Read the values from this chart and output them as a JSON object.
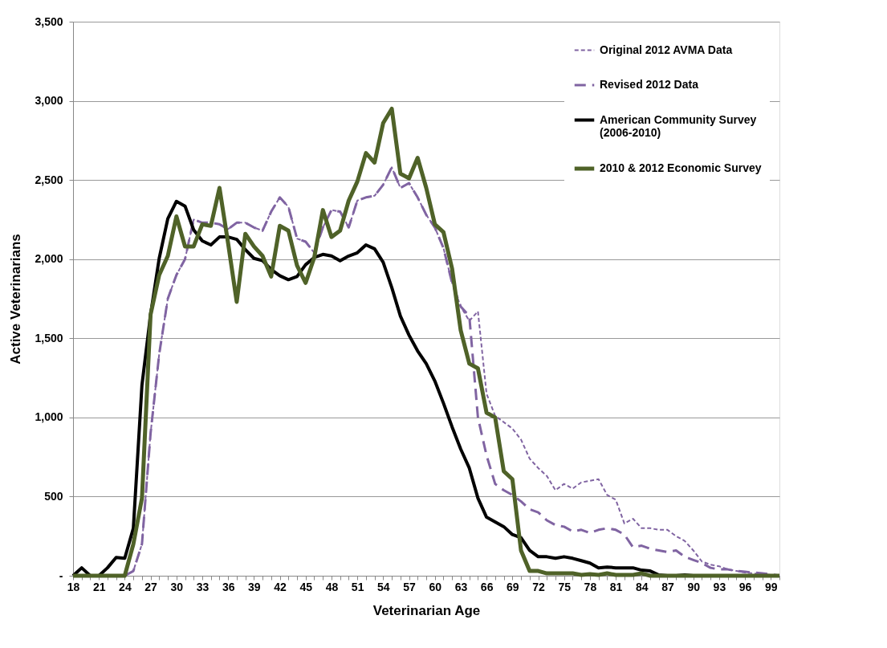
{
  "chart_data": {
    "type": "line",
    "xlabel": "Veterinarian Age",
    "ylabel": "Active Veterinarians",
    "x": [
      18,
      19,
      20,
      21,
      22,
      23,
      24,
      25,
      26,
      27,
      28,
      29,
      30,
      31,
      32,
      33,
      34,
      35,
      36,
      37,
      38,
      39,
      40,
      41,
      42,
      43,
      44,
      45,
      46,
      47,
      48,
      49,
      50,
      51,
      52,
      53,
      54,
      55,
      56,
      57,
      58,
      59,
      60,
      61,
      62,
      63,
      64,
      65,
      66,
      67,
      68,
      69,
      70,
      71,
      72,
      73,
      74,
      75,
      76,
      77,
      78,
      79,
      80,
      81,
      82,
      83,
      84,
      85,
      86,
      87,
      88,
      89,
      90,
      91,
      92,
      93,
      94,
      95,
      96,
      97,
      98,
      99,
      100
    ],
    "xlim": [
      18,
      100
    ],
    "xticks": [
      18,
      {
        "value": 19,
        "label": null
      },
      {
        "value": 20,
        "label": null
      },
      21,
      {
        "value": 22,
        "label": null
      },
      {
        "value": 23,
        "label": null
      },
      24,
      {
        "value": 25,
        "label": null
      },
      {
        "value": 26,
        "label": null
      },
      27,
      {
        "value": 28,
        "label": null
      },
      {
        "value": 29,
        "label": null
      },
      30,
      {
        "value": 31,
        "label": null
      },
      {
        "value": 32,
        "label": null
      },
      33,
      {
        "value": 34,
        "label": null
      },
      {
        "value": 35,
        "label": null
      },
      36,
      {
        "value": 37,
        "label": null
      },
      {
        "value": 38,
        "label": null
      },
      39,
      {
        "value": 40,
        "label": null
      },
      {
        "value": 41,
        "label": null
      },
      42,
      {
        "value": 43,
        "label": null
      },
      {
        "value": 44,
        "label": null
      },
      45,
      {
        "value": 46,
        "label": null
      },
      {
        "value": 47,
        "label": null
      },
      48,
      {
        "value": 49,
        "label": null
      },
      {
        "value": 50,
        "label": null
      },
      51,
      {
        "value": 52,
        "label": null
      },
      {
        "value": 53,
        "label": null
      },
      54,
      {
        "value": 55,
        "label": null
      },
      {
        "value": 56,
        "label": null
      },
      57,
      {
        "value": 58,
        "label": null
      },
      {
        "value": 59,
        "label": null
      },
      60,
      {
        "value": 61,
        "label": null
      },
      {
        "value": 62,
        "label": null
      },
      63,
      {
        "value": 64,
        "label": null
      },
      {
        "value": 65,
        "label": null
      },
      66,
      {
        "value": 67,
        "label": null
      },
      {
        "value": 68,
        "label": null
      },
      69,
      {
        "value": 70,
        "label": null
      },
      {
        "value": 71,
        "label": null
      },
      72,
      {
        "value": 73,
        "label": null
      },
      {
        "value": 74,
        "label": null
      },
      75,
      {
        "value": 76,
        "label": null
      },
      {
        "value": 77,
        "label": null
      },
      78,
      {
        "value": 79,
        "label": null
      },
      {
        "value": 80,
        "label": null
      },
      81,
      {
        "value": 82,
        "label": null
      },
      {
        "value": 83,
        "label": null
      },
      84,
      {
        "value": 85,
        "label": null
      },
      {
        "value": 86,
        "label": null
      },
      87,
      {
        "value": 88,
        "label": null
      },
      {
        "value": 89,
        "label": null
      },
      90,
      {
        "value": 91,
        "label": null
      },
      {
        "value": 92,
        "label": null
      },
      93,
      {
        "value": 94,
        "label": null
      },
      {
        "value": 95,
        "label": null
      },
      96,
      {
        "value": 97,
        "label": null
      },
      {
        "value": 98,
        "label": null
      },
      99,
      {
        "value": 100,
        "label": null
      }
    ],
    "ylim": [
      0,
      3500
    ],
    "yticks": [
      {
        "value": 0,
        "label": "-"
      },
      500,
      {
        "value": 1000,
        "label": "1,000"
      },
      {
        "value": 1500,
        "label": "1,500"
      },
      {
        "value": 2000,
        "label": "2,000"
      },
      {
        "value": 2500,
        "label": "2,500"
      },
      {
        "value": 3000,
        "label": "3,000"
      },
      {
        "value": 3500,
        "label": "3,500"
      }
    ],
    "grid": "y",
    "legend": "top right",
    "series": [
      {
        "name": "Original 2012 AVMA Data",
        "color": "#8064a2",
        "line_style": "dashed",
        "values": [
          0,
          0,
          0,
          0,
          0,
          0,
          0,
          30,
          200,
          900,
          1400,
          1750,
          1900,
          2000,
          2250,
          2230,
          2230,
          2220,
          2190,
          2230,
          2230,
          2200,
          2180,
          2300,
          2390,
          2330,
          2130,
          2110,
          2040,
          2200,
          2310,
          2300,
          2200,
          2370,
          2390,
          2400,
          2470,
          2580,
          2450,
          2480,
          2390,
          2280,
          2200,
          2070,
          1850,
          1700,
          1610,
          1670,
          1150,
          1010,
          970,
          930,
          860,
          740,
          680,
          630,
          540,
          580,
          550,
          590,
          600,
          610,
          510,
          480,
          330,
          360,
          300,
          300,
          290,
          290,
          250,
          220,
          160,
          90,
          70,
          60,
          40,
          30,
          20,
          15,
          10,
          5,
          0
        ]
      },
      {
        "name": "Revised 2012 Data",
        "color": "#8064a2",
        "line_style": "dashed",
        "values": [
          0,
          0,
          0,
          0,
          0,
          0,
          0,
          30,
          200,
          900,
          1400,
          1750,
          1900,
          2000,
          2250,
          2230,
          2230,
          2220,
          2190,
          2230,
          2230,
          2200,
          2180,
          2300,
          2390,
          2330,
          2130,
          2110,
          2040,
          2200,
          2310,
          2300,
          2200,
          2370,
          2390,
          2400,
          2470,
          2580,
          2450,
          2480,
          2390,
          2280,
          2200,
          2070,
          1850,
          1700,
          1640,
          1000,
          760,
          580,
          540,
          510,
          470,
          420,
          400,
          350,
          320,
          310,
          280,
          290,
          270,
          290,
          300,
          290,
          260,
          180,
          190,
          170,
          160,
          150,
          160,
          120,
          100,
          80,
          50,
          40,
          40,
          30,
          25,
          20,
          15,
          10,
          0
        ]
      },
      {
        "name": "American Community Survey (2006-2010)",
        "color": "#000000",
        "line_style": "solid",
        "values": [
          0,
          50,
          0,
          0,
          50,
          115,
          110,
          300,
          1205,
          1650,
          2005,
          2255,
          2365,
          2335,
          2185,
          2115,
          2090,
          2140,
          2140,
          2125,
          2060,
          2005,
          1990,
          1935,
          1895,
          1870,
          1890,
          1965,
          2010,
          2030,
          2020,
          1990,
          2020,
          2040,
          2090,
          2065,
          1980,
          1820,
          1640,
          1520,
          1420,
          1340,
          1230,
          1090,
          940,
          800,
          680,
          490,
          370,
          340,
          310,
          260,
          240,
          160,
          120,
          120,
          110,
          120,
          110,
          95,
          80,
          50,
          55,
          50,
          50,
          50,
          35,
          30,
          5,
          0,
          0,
          5,
          0,
          0,
          0,
          0,
          0,
          0,
          0,
          0,
          0,
          0,
          0
        ]
      },
      {
        "name": "2010 & 2012 Economic Survey",
        "color": "#4f6228",
        "line_style": "solid",
        "values": [
          0,
          0,
          0,
          0,
          0,
          0,
          0,
          200,
          490,
          1650,
          1900,
          2020,
          2270,
          2080,
          2080,
          2220,
          2210,
          2450,
          2100,
          1730,
          2160,
          2080,
          2020,
          1890,
          2210,
          2180,
          1960,
          1850,
          2010,
          2310,
          2140,
          2180,
          2370,
          2490,
          2670,
          2610,
          2860,
          2950,
          2540,
          2510,
          2640,
          2450,
          2220,
          2170,
          1940,
          1550,
          1340,
          1310,
          1030,
          1000,
          660,
          610,
          160,
          30,
          30,
          15,
          15,
          15,
          15,
          5,
          10,
          5,
          15,
          5,
          5,
          5,
          15,
          0,
          0,
          0,
          0,
          0,
          0,
          0,
          0,
          0,
          0,
          0,
          0,
          0,
          0,
          0,
          0
        ]
      }
    ]
  }
}
